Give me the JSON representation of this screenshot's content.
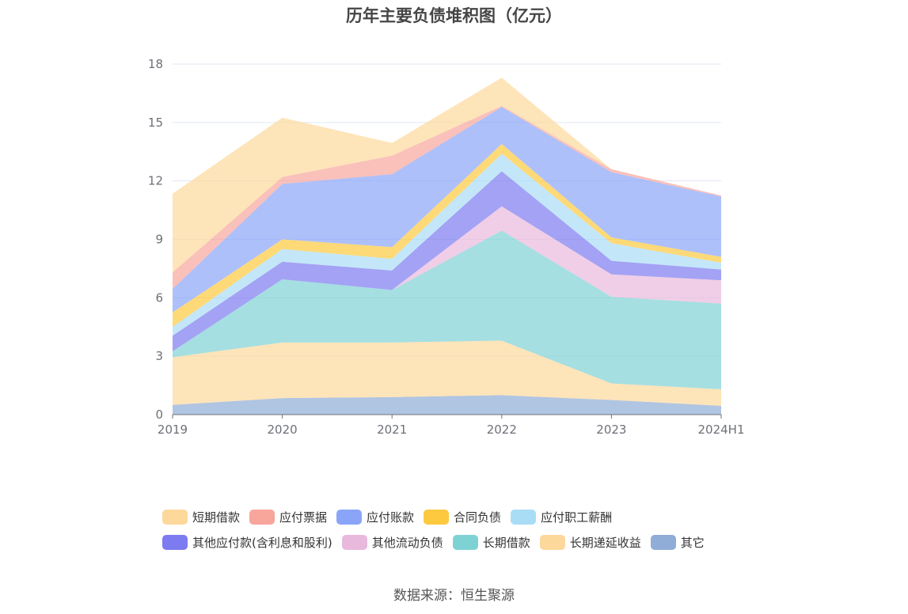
{
  "title": "历年主要负债堆积图（亿元）",
  "source": "数据来源：恒生聚源",
  "chart_data": {
    "type": "area",
    "stacked": true,
    "categories": [
      "2019",
      "2020",
      "2021",
      "2022",
      "2023",
      "2024H1"
    ],
    "ylim": [
      0,
      18
    ],
    "yticks": [
      0,
      3,
      6,
      9,
      12,
      15,
      18
    ],
    "grid": true,
    "legend_position": "bottom",
    "series": [
      {
        "name": "其它",
        "color": "#8fadd6",
        "values": [
          0.5,
          0.85,
          0.9,
          1.0,
          0.75,
          0.45
        ]
      },
      {
        "name": "长期递延收益",
        "color": "#fdd89b",
        "values": [
          2.45,
          2.85,
          2.8,
          2.8,
          0.85,
          0.85
        ]
      },
      {
        "name": "长期借款",
        "color": "#7fd2d4",
        "values": [
          0.3,
          3.25,
          2.7,
          5.65,
          4.45,
          4.4
        ]
      },
      {
        "name": "其他流动负债",
        "color": "#e9b9dd",
        "values": [
          0.0,
          0.0,
          0.0,
          1.25,
          1.15,
          1.2
        ]
      },
      {
        "name": "其他应付款(含利息和股利)",
        "color": "#7d7bf0",
        "values": [
          0.8,
          0.9,
          1.0,
          1.8,
          0.7,
          0.55
        ]
      },
      {
        "name": "应付职工薪酬",
        "color": "#a9ddf6",
        "values": [
          0.45,
          0.65,
          0.6,
          0.9,
          0.9,
          0.35
        ]
      },
      {
        "name": "合同负债",
        "color": "#fdc93f",
        "values": [
          0.75,
          0.5,
          0.6,
          0.5,
          0.3,
          0.3
        ]
      },
      {
        "name": "应付账款",
        "color": "#8aa5f8",
        "values": [
          1.2,
          2.85,
          3.75,
          1.9,
          3.35,
          3.1
        ]
      },
      {
        "name": "应付票据",
        "color": "#f8a59c",
        "values": [
          0.85,
          0.35,
          0.95,
          0.05,
          0.15,
          0.05
        ]
      },
      {
        "name": "短期借款",
        "color": "#fdd89b",
        "values": [
          4.05,
          3.05,
          0.65,
          1.45,
          0.0,
          0.0
        ]
      }
    ],
    "legend_order": [
      "短期借款",
      "应付票据",
      "应付账款",
      "合同负债",
      "应付职工薪酬",
      "其他应付款(含利息和股利)",
      "其他流动负债",
      "长期借款",
      "长期递延收益",
      "其它"
    ]
  }
}
